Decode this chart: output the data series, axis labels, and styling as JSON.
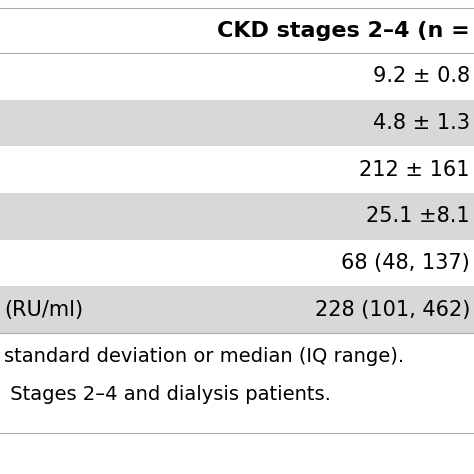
{
  "header": "CKD stages 2–4 (n =",
  "rows": [
    {
      "label": "",
      "value": "9.2 ± 0.8",
      "shaded": false
    },
    {
      "label": "",
      "value": "4.8 ± 1.3",
      "shaded": true
    },
    {
      "label": "",
      "value": "212 ± 161",
      "shaded": false
    },
    {
      "label": "",
      "value": "25.1 ±8.1",
      "shaded": true
    },
    {
      "label": "",
      "value": "68 (48, 137)",
      "shaded": false
    },
    {
      "label": "(RU/ml)",
      "value": "228 (101, 462)",
      "shaded": true
    }
  ],
  "footer_lines": [
    "standard deviation or median (IQ range).",
    " Stages 2–4 and dialysis patients."
  ],
  "bg_color": "#ffffff",
  "shaded_color": "#d8d8d8",
  "line_color": "#aaaaaa",
  "font_size": 15,
  "header_font_size": 16,
  "footer_font_size": 14,
  "fig_width": 4.74,
  "fig_height": 4.74,
  "dpi": 100
}
